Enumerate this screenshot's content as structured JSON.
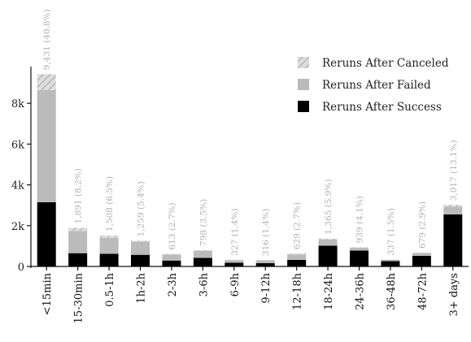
{
  "chart_data": {
    "type": "bar",
    "stacked": true,
    "categories": [
      "<15min",
      "15-30min",
      "0.5-1h",
      "1h-2h",
      "2-3h",
      "3-6h",
      "6-9h",
      "9-12h",
      "12-18h",
      "18-24h",
      "24-36h",
      "36-48h",
      "48-72h",
      "3+ days"
    ],
    "series": [
      {
        "name": "Reruns After Success",
        "color": "#000000",
        "values": [
          3150,
          650,
          620,
          570,
          290,
          420,
          180,
          160,
          320,
          1020,
          780,
          260,
          520,
          2550
        ]
      },
      {
        "name": "Reruns After Failed",
        "color": "#bbbbbb",
        "values": [
          5500,
          1080,
          780,
          640,
          290,
          340,
          130,
          135,
          270,
          300,
          140,
          65,
          130,
          380
        ]
      },
      {
        "name": "Reruns After Canceled",
        "color": "#bbbbbb",
        "pattern": "hatch",
        "values": [
          781,
          161,
          108,
          49,
          33,
          38,
          17,
          21,
          39,
          45,
          19,
          12,
          29,
          87
        ]
      }
    ],
    "totals": [
      9431,
      1891,
      1508,
      1259,
      613,
      798,
      327,
      316,
      629,
      1365,
      939,
      337,
      679,
      3017
    ],
    "data_labels": [
      "9,431 (40.8%)",
      "1,891 (8.2%)",
      "1,508 (6.5%)",
      "1,259 (5.4%)",
      "613 (2.7%)",
      "798 (3.5%)",
      "327 (1.4%)",
      "316 (1.4%)",
      "629 (2.7%)",
      "1,365 (5.9%)",
      "939 (4.1%)",
      "337 (1.5%)",
      "679 (2.9%)",
      "3,017 (13.1%)"
    ],
    "legend_order": [
      "Reruns After Canceled",
      "Reruns After Failed",
      "Reruns After Success"
    ],
    "legend_position": "top-right",
    "yticks": [
      0,
      2000,
      4000,
      6000,
      8000
    ],
    "ytick_labels": [
      "0",
      "2k",
      "4k",
      "6k",
      "8k"
    ],
    "ylim": [
      0,
      9800
    ],
    "title": "",
    "xlabel": "",
    "ylabel": "",
    "grid": false
  }
}
